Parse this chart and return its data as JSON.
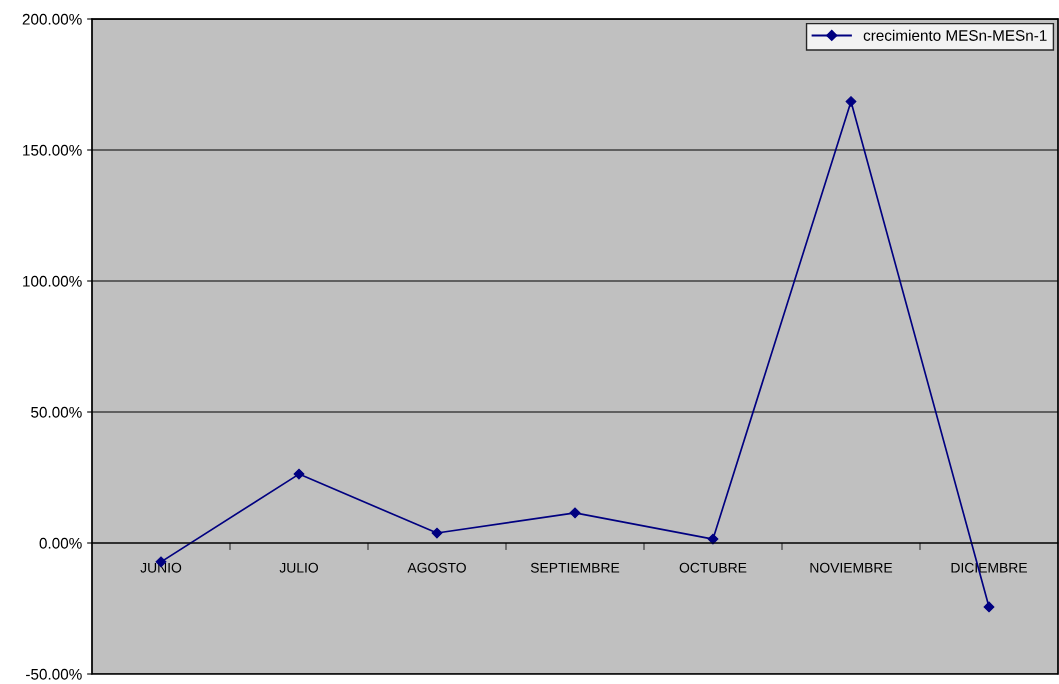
{
  "chart_data": {
    "type": "line",
    "categories": [
      "JUNIO",
      "JULIO",
      "AGOSTO",
      "SEPTIEMBRE",
      "OCTUBRE",
      "NOVIEMBRE",
      "DICIEMBRE"
    ],
    "series": [
      {
        "name": "crecimiento MESn-MESn-1",
        "color": "#000080",
        "values": [
          -7.2,
          26.3,
          3.8,
          11.5,
          1.5,
          168.5,
          -24.4
        ]
      }
    ],
    "ylim": [
      -50,
      200
    ],
    "yticks": [
      {
        "value": -50,
        "label": "-50.00%"
      },
      {
        "value": 0,
        "label": "0.00%"
      },
      {
        "value": 50,
        "label": "50.00%"
      },
      {
        "value": 100,
        "label": "100.00%"
      },
      {
        "value": 150,
        "label": "150.00%"
      },
      {
        "value": 200,
        "label": "200.00%"
      }
    ],
    "grid": "y",
    "legend": "top right",
    "marker": "diamond",
    "line_style": "solid"
  }
}
